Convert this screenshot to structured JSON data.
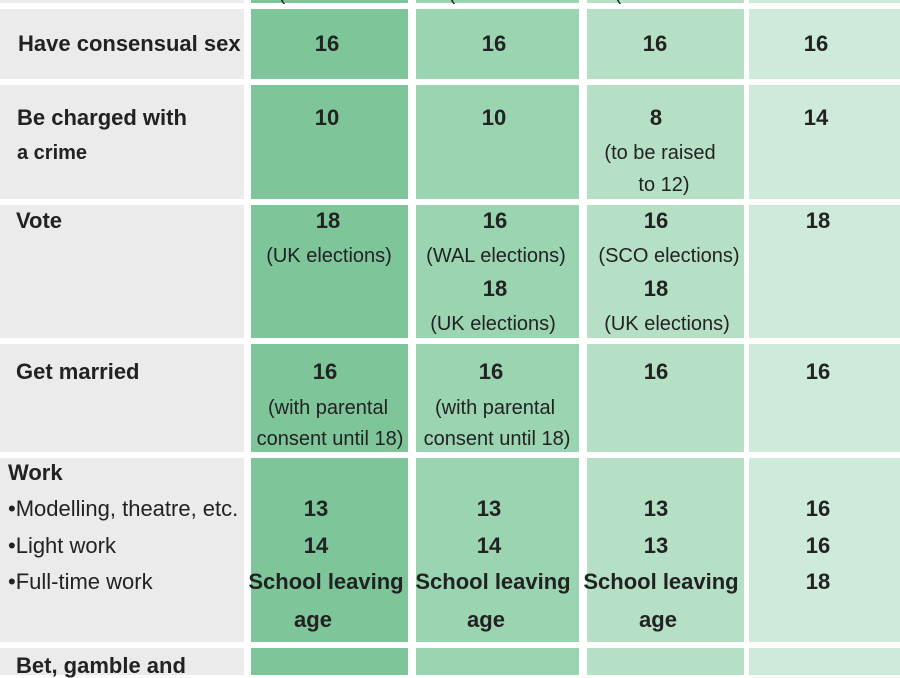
{
  "top_fragment": [
    "(",
    "(",
    "("
  ],
  "rows": {
    "sex": {
      "label": "Have consensual sex",
      "values": [
        "16",
        "16",
        "16",
        "16"
      ]
    },
    "crime": {
      "label_line1": "Be charged with",
      "label_line2": "a crime",
      "values": [
        "10",
        "10",
        "8",
        "14"
      ],
      "col3_note_line1": "(to be raised",
      "col3_note_line2": "to 12)"
    },
    "vote": {
      "label": "Vote",
      "col1": {
        "value": "18",
        "note": "(UK elections)"
      },
      "col2": {
        "value1": "16",
        "note1": "(WAL elections)",
        "value2": "18",
        "note2": "(UK elections)"
      },
      "col3": {
        "value1": "16",
        "note1": "(SCO elections)",
        "value2": "18",
        "note2": "(UK elections)"
      },
      "col4": {
        "value": "18"
      }
    },
    "marry": {
      "label": "Get married",
      "values": [
        "16",
        "16",
        "16",
        "16"
      ],
      "note_line1": "(with parental",
      "note_line2": "consent until 18)"
    },
    "work": {
      "label": "Work",
      "items": [
        {
          "label": "•Modelling, theatre, etc.",
          "values": [
            "13",
            "13",
            "13",
            "16"
          ]
        },
        {
          "label": "•Light work",
          "values": [
            "14",
            "14",
            "13",
            "16"
          ]
        },
        {
          "label": "•Full-time work",
          "values": [
            "School leaving",
            "School leaving",
            "School leaving",
            "18"
          ]
        }
      ],
      "age_word": "age"
    },
    "gamble": {
      "label": "Bet, gamble and"
    }
  }
}
